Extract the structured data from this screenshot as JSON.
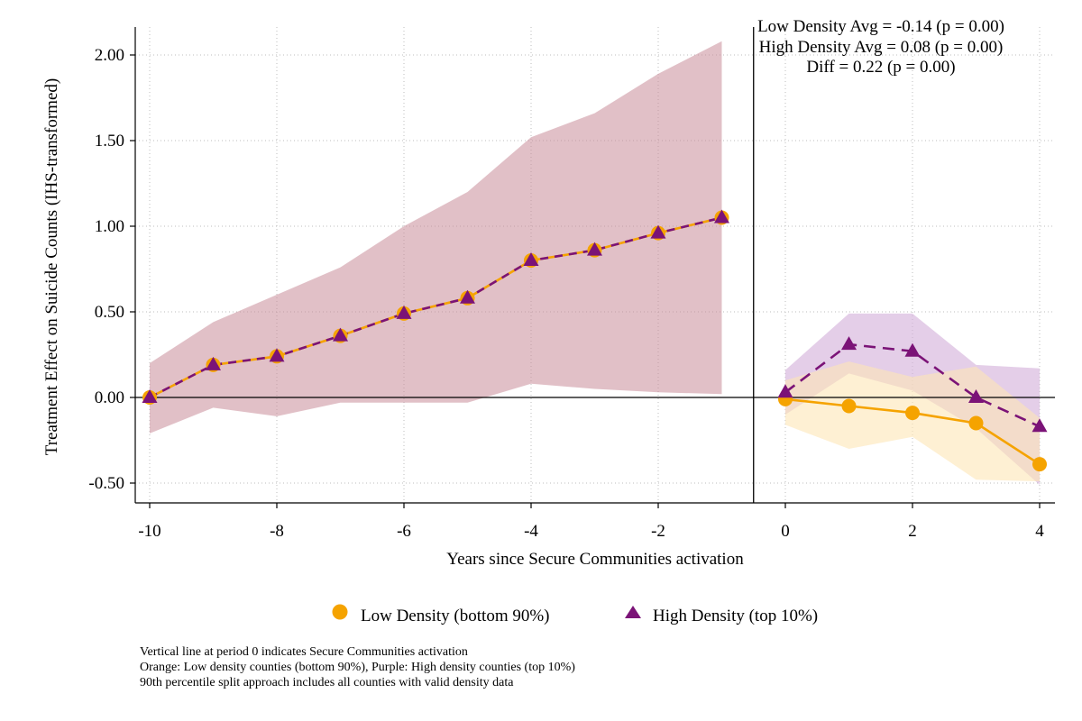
{
  "chart_data": {
    "type": "line",
    "xlabel": "Years since Secure Communities activation",
    "ylabel": "Treatment Effect on Suicide Counts (IHS-transformed)",
    "xlim": [
      -10.2,
      4.2
    ],
    "ylim": [
      -0.62,
      2.2
    ],
    "x_ticks": [
      -10,
      -8,
      -6,
      -4,
      -2,
      0,
      2,
      4
    ],
    "x_tick_labels": [
      "-10",
      "-8",
      "-6",
      "-4",
      "-2",
      "0",
      "2",
      "4"
    ],
    "y_ticks": [
      -0.5,
      0,
      0.5,
      1,
      1.5,
      2
    ],
    "y_tick_labels": [
      "-0.50",
      "0.00",
      "0.50",
      "1.00",
      "1.50",
      "2.00"
    ],
    "grid": true,
    "reference_lines": {
      "vertical_x": -0.5,
      "horizontal_y": 0
    },
    "legend_position": "bottom",
    "series": [
      {
        "name": "Low Density (bottom 90%)",
        "color": "#f5a300",
        "marker": "circle",
        "pre_x": [
          -10,
          -9,
          -8,
          -7,
          -6,
          -5,
          -4,
          -3,
          -2,
          -1
        ],
        "pre_y": [
          0.0,
          0.19,
          0.24,
          0.36,
          0.49,
          0.58,
          0.8,
          0.86,
          0.96,
          1.05
        ],
        "post_x": [
          0,
          1,
          2,
          3,
          4
        ],
        "post_y": [
          -0.01,
          -0.05,
          -0.09,
          -0.15,
          -0.39
        ],
        "post_ci_upper": [
          0.1,
          0.21,
          0.12,
          0.18,
          -0.12
        ],
        "post_ci_lower": [
          -0.16,
          -0.3,
          -0.23,
          -0.48,
          -0.49
        ],
        "post_ci_color": "#fde6b6",
        "post_line_style": "solid"
      },
      {
        "name": "High Density (top 10%)",
        "color": "#7b1377",
        "marker": "triangle",
        "pre_x": [
          -10,
          -9,
          -8,
          -7,
          -6,
          -5,
          -4,
          -3,
          -2,
          -1
        ],
        "pre_y": [
          0.0,
          0.19,
          0.24,
          0.36,
          0.49,
          0.58,
          0.8,
          0.86,
          0.96,
          1.05
        ],
        "post_x": [
          0,
          1,
          2,
          3,
          4
        ],
        "post_y": [
          0.03,
          0.31,
          0.27,
          0.0,
          -0.17
        ],
        "post_ci_upper": [
          0.16,
          0.49,
          0.49,
          0.19,
          0.17
        ],
        "post_ci_lower": [
          -0.1,
          0.14,
          0.04,
          -0.18,
          -0.51
        ],
        "post_ci_color": "#d2aed8",
        "post_line_style": "dashed"
      }
    ],
    "pre_ci": {
      "x": [
        -10,
        -9,
        -8,
        -7,
        -6,
        -5,
        -4,
        -3,
        -2,
        -1
      ],
      "upper": [
        0.2,
        0.44,
        0.6,
        0.76,
        1.0,
        1.2,
        1.52,
        1.66,
        1.89,
        2.08
      ],
      "lower": [
        -0.21,
        -0.06,
        -0.11,
        -0.03,
        -0.03,
        -0.03,
        0.08,
        0.05,
        0.03,
        0.02
      ],
      "color": "#c98d99"
    },
    "annotations": [
      "Low Density Avg = -0.14 (p = 0.00)",
      "High Density Avg = 0.08 (p = 0.00)",
      "Diff = 0.22 (p = 0.00)"
    ]
  },
  "notes": [
    "Vertical line at period 0 indicates Secure Communities activation",
    "Orange: Low density counties (bottom 90%), Purple: High density counties (top 10%)",
    "90th percentile split approach includes all counties with valid density data"
  ]
}
